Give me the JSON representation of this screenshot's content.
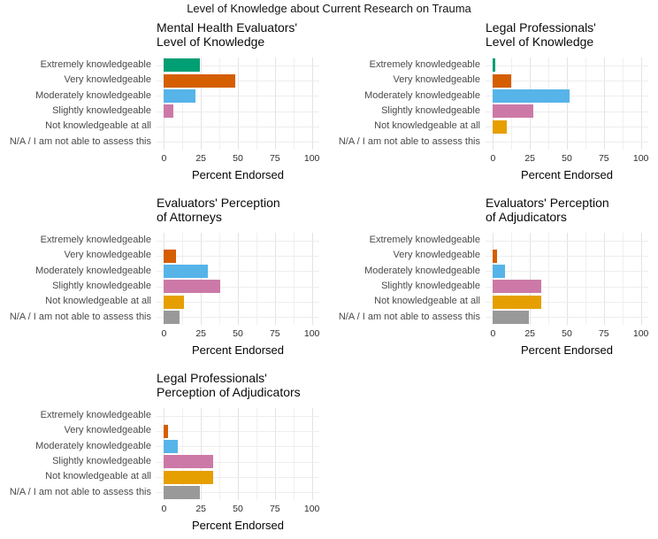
{
  "figure_title": "Level of Knowledge about Current Research on Trauma",
  "palette": {
    "extremely": "#009E73",
    "very": "#D55E00",
    "moderately": "#56B4E9",
    "slightly": "#CC79A7",
    "not_at_all": "#E69F00",
    "na": "#999999",
    "grid_major": "#E3E3E3",
    "grid_minor": "#F0F0F0",
    "axis_text": "#4A4A4A"
  },
  "chart_data": [
    {
      "type": "bar",
      "orientation": "horizontal",
      "title_lines": [
        "Mental Health Evaluators'",
        "Level of Knowledge"
      ],
      "categories": [
        "Extremely knowledgeable",
        "Very knowledgeable",
        "Moderately knowledgeable",
        "Slightly knowledgeable",
        "Not knowledgeable at all",
        "N/A / I am not able to assess this"
      ],
      "values": [
        24.2,
        48.5,
        21.2,
        6.1,
        0,
        0
      ],
      "bar_colors": [
        "#009E73",
        "#D55E00",
        "#56B4E9",
        "#CC79A7",
        "#E69F00",
        "#999999"
      ],
      "xlabel": "Percent Endorsed",
      "xlim": [
        0,
        100
      ],
      "xticks": [
        0,
        25,
        50,
        75,
        100
      ],
      "minor_step": 12.5,
      "grid": true,
      "legend": false
    },
    {
      "type": "bar",
      "orientation": "horizontal",
      "title_lines": [
        "Legal Professionals'",
        "Level of Knowledge"
      ],
      "categories": [
        "Extremely knowledgeable",
        "Very knowledgeable",
        "Moderately knowledgeable",
        "Slightly knowledgeable",
        "Not knowledgeable at all",
        "N/A / I am not able to assess this"
      ],
      "values": [
        1.5,
        12.1,
        51.5,
        27.3,
        9.1,
        0
      ],
      "bar_colors": [
        "#009E73",
        "#D55E00",
        "#56B4E9",
        "#CC79A7",
        "#E69F00",
        "#999999"
      ],
      "xlabel": "Percent Endorsed",
      "xlim": [
        0,
        100
      ],
      "xticks": [
        0,
        25,
        50,
        75,
        100
      ],
      "minor_step": 12.5,
      "grid": true,
      "legend": false
    },
    {
      "type": "bar",
      "orientation": "horizontal",
      "title_lines": [
        "Evaluators' Perception",
        "of Attorneys"
      ],
      "categories": [
        "Extremely knowledgeable",
        "Very knowledgeable",
        "Moderately knowledgeable",
        "Slightly knowledgeable",
        "Not knowledgeable at all",
        "N/A / I am not able to assess this"
      ],
      "values": [
        0,
        8.1,
        29.7,
        37.8,
        13.5,
        10.8
      ],
      "bar_colors": [
        "#009E73",
        "#D55E00",
        "#56B4E9",
        "#CC79A7",
        "#E69F00",
        "#999999"
      ],
      "xlabel": "Percent Endorsed",
      "xlim": [
        0,
        100
      ],
      "xticks": [
        0,
        25,
        50,
        75,
        100
      ],
      "minor_step": 12.5,
      "grid": true,
      "legend": false
    },
    {
      "type": "bar",
      "orientation": "horizontal",
      "title_lines": [
        "Evaluators' Perception",
        "of Adjudicators"
      ],
      "categories": [
        "Extremely knowledgeable",
        "Very knowledgeable",
        "Moderately knowledgeable",
        "Slightly knowledgeable",
        "Not knowledgeable at all",
        "N/A / I am not able to assess this"
      ],
      "values": [
        0,
        2.7,
        8.1,
        32.4,
        32.4,
        24.3
      ],
      "bar_colors": [
        "#009E73",
        "#D55E00",
        "#56B4E9",
        "#CC79A7",
        "#E69F00",
        "#999999"
      ],
      "xlabel": "Percent Endorsed",
      "xlim": [
        0,
        100
      ],
      "xticks": [
        0,
        25,
        50,
        75,
        100
      ],
      "minor_step": 12.5,
      "grid": true,
      "legend": false
    },
    {
      "type": "bar",
      "orientation": "horizontal",
      "title_lines": [
        "Legal Professionals'",
        "Perception of Adjudicators"
      ],
      "categories": [
        "Extremely knowledgeable",
        "Very knowledgeable",
        "Moderately knowledgeable",
        "Slightly knowledgeable",
        "Not knowledgeable at all",
        "N/A / I am not able to assess this"
      ],
      "values": [
        0,
        3.0,
        9.1,
        33.3,
        33.3,
        24.2
      ],
      "bar_colors": [
        "#009E73",
        "#D55E00",
        "#56B4E9",
        "#CC79A7",
        "#E69F00",
        "#999999"
      ],
      "xlabel": "Percent Endorsed",
      "xlim": [
        0,
        100
      ],
      "xticks": [
        0,
        25,
        50,
        75,
        100
      ],
      "minor_step": 12.5,
      "grid": true,
      "legend": false
    }
  ]
}
